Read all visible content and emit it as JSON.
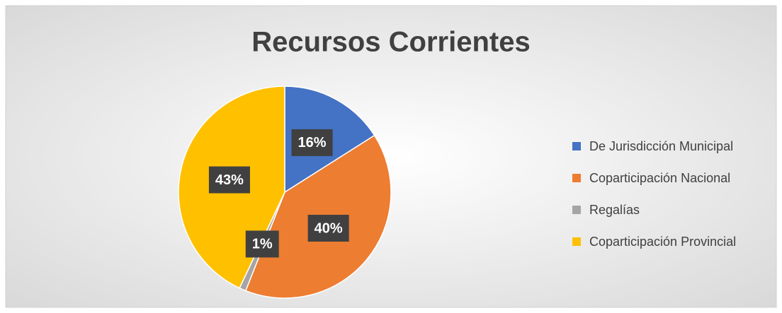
{
  "chart_data": {
    "type": "pie",
    "title": "Recursos Corrientes",
    "categories": [
      "De Jurisdicción Municipal",
      "Coparticipación Nacional",
      "Regalías",
      "Coparticipación Provincial"
    ],
    "values": [
      16,
      40,
      1,
      43
    ],
    "value_labels": [
      "16%",
      "40%",
      "1%",
      "43%"
    ],
    "colors": [
      "#4472c4",
      "#ed7d31",
      "#a5a5a5",
      "#ffc000"
    ],
    "legend": "right"
  }
}
